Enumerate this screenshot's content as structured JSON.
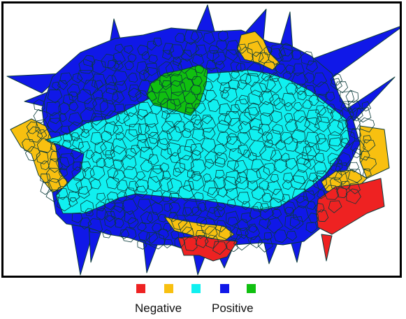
{
  "colors": {
    "red": "#ee2222",
    "orange": "#f8c010",
    "cyan": "#10f0f0",
    "blue": "#1018e8",
    "green": "#10c010",
    "edge": "#0a3a3a"
  },
  "legend": {
    "swatches": [
      "#ee2222",
      "#f8c010",
      "#10f0f0",
      "#1018e8",
      "#10c010"
    ],
    "negative_label": "Negative",
    "positive_label": "Positive"
  }
}
